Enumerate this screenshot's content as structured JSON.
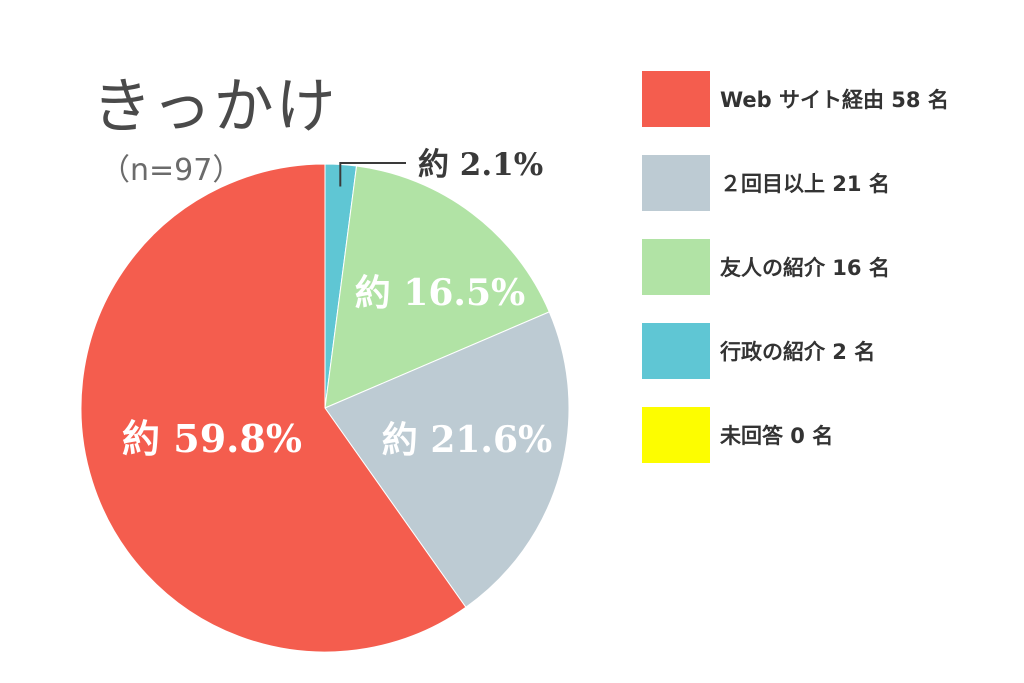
{
  "title": "きっかけ",
  "subtitle": "（n=97）",
  "chart_data": {
    "type": "pie",
    "title": "きっかけ",
    "slices": [
      {
        "label": "行政の紹介",
        "count": 2,
        "percent_label": "約 2.1%",
        "color": "#5fc6d4"
      },
      {
        "label": "友人の紹介",
        "count": 16,
        "percent_label": "約 16.5%",
        "color": "#b1e3a5"
      },
      {
        "label": "２回目以上",
        "count": 21,
        "percent_label": "約 21.6%",
        "color": "#bdcbd3"
      },
      {
        "label": "Web サイト経由",
        "count": 58,
        "percent_label": "約 59.8%",
        "color": "#f45d4e"
      },
      {
        "label": "未回答",
        "count": 0,
        "percent_label": "",
        "color": "#fdfd00"
      }
    ],
    "legend": [
      {
        "text": "Web サイト経由 58 名",
        "color": "#f45d4e"
      },
      {
        "text": "２回目以上 21 名",
        "color": "#bdcbd3"
      },
      {
        "text": "友人の紹介 16 名",
        "color": "#b1e3a5"
      },
      {
        "text": "行政の紹介 2 名",
        "color": "#5fc6d4"
      },
      {
        "text": "未回答 0 名",
        "color": "#fdfd00"
      }
    ],
    "legend_position": "right"
  }
}
